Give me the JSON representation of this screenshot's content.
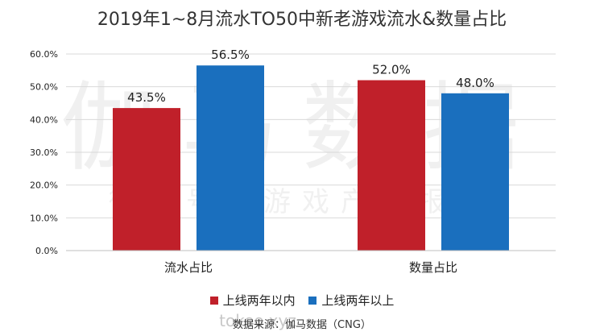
{
  "title": "2019年1~8月流水TO50中新老游戏流水&数量占比",
  "source_text": "数据来源：伽马数据（CNG）",
  "watermark": {
    "main": "伽马数据",
    "sub": "微信号：游戏产业报告",
    "site": "tokeo.xyz"
  },
  "colors": {
    "series_new": "#c0202a",
    "series_old": "#1a6fbe",
    "gridline": "#d9d9d9",
    "axis": "#bfbfbf"
  },
  "chart_data": {
    "type": "bar",
    "title": "2019年1~8月流水TO50中新老游戏流水&数量占比",
    "categories": [
      "流水占比",
      "数量占比"
    ],
    "series": [
      {
        "name": "上线两年以内",
        "values": [
          43.5,
          52.0
        ],
        "labels": [
          "43.5%",
          "52.0%"
        ]
      },
      {
        "name": "上线两年以上",
        "values": [
          56.5,
          48.0
        ],
        "labels": [
          "56.5%",
          "48.0%"
        ]
      }
    ],
    "y_ticks": [
      "0.0%",
      "10.0%",
      "20.0%",
      "30.0%",
      "40.0%",
      "50.0%",
      "60.0%"
    ],
    "ylim": [
      0,
      60
    ],
    "grid": true,
    "legend_position": "bottom"
  }
}
